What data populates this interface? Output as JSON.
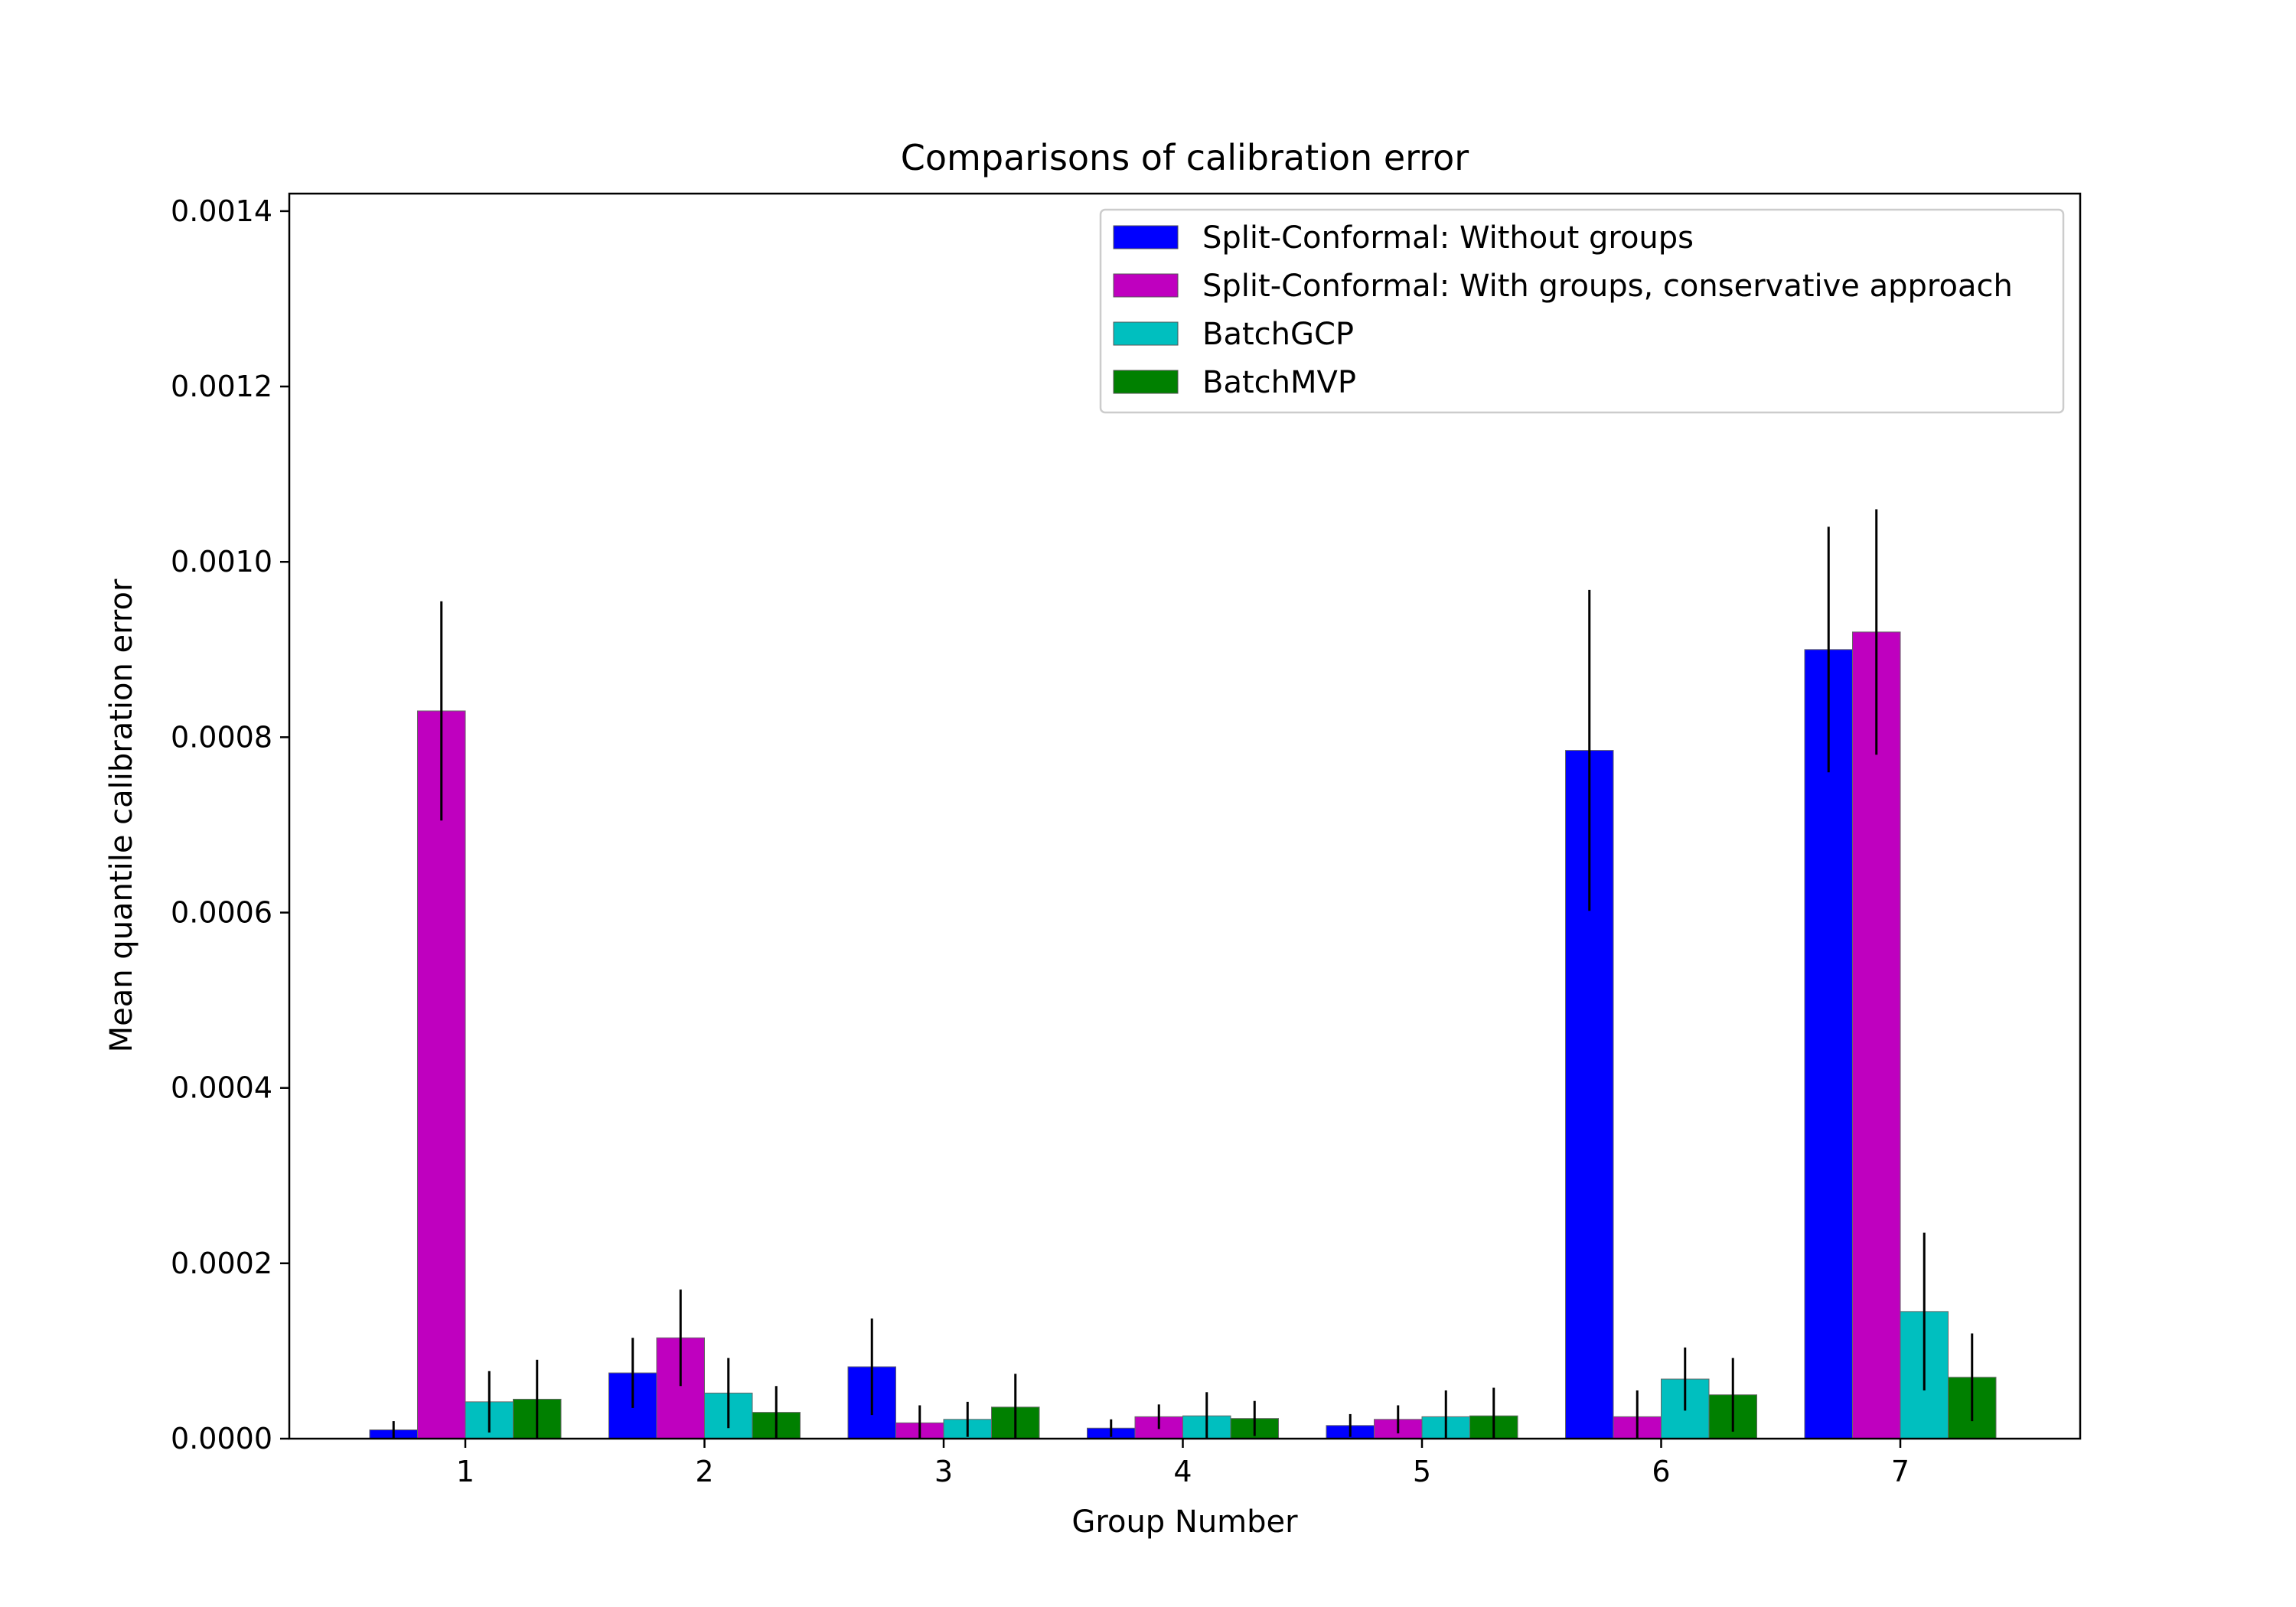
{
  "chart_data": {
    "type": "bar",
    "title": "Comparisons of calibration error",
    "xlabel": "Group Number",
    "ylabel": "Mean quantile calibration error",
    "categories": [
      "1",
      "2",
      "3",
      "4",
      "5",
      "6",
      "7"
    ],
    "ylim": [
      0,
      0.00142
    ],
    "yticks": [
      0,
      0.0002,
      0.0004,
      0.0006,
      0.0008,
      0.001,
      0.0012,
      0.0014
    ],
    "ytick_labels": [
      "0.0000",
      "0.0002",
      "0.0004",
      "0.0006",
      "0.0008",
      "0.0010",
      "0.0012",
      "0.0014"
    ],
    "legend_position": "top-right",
    "grid": false,
    "series": [
      {
        "name": "Split-Conformal: Without groups",
        "color": "#0000ff",
        "values": [
          1e-05,
          7.5e-05,
          8.2e-05,
          1.2e-05,
          1.5e-05,
          0.000785,
          0.0009
        ],
        "errors": [
          1e-05,
          4e-05,
          5.5e-05,
          1e-05,
          1.3e-05,
          0.000183,
          0.00014
        ]
      },
      {
        "name": "Split-Conformal: With groups, conservative approach",
        "color": "#bf00bf",
        "values": [
          0.00083,
          0.000115,
          1.8e-05,
          2.5e-05,
          2.2e-05,
          2.5e-05,
          0.00092
        ],
        "errors": [
          0.000125,
          5.5e-05,
          2e-05,
          1.4e-05,
          1.6e-05,
          3e-05,
          0.00014
        ]
      },
      {
        "name": "BatchGCP",
        "color": "#00bfbf",
        "values": [
          4.2e-05,
          5.2e-05,
          2.2e-05,
          2.6e-05,
          2.5e-05,
          6.8e-05,
          0.000145
        ],
        "errors": [
          3.5e-05,
          4e-05,
          2e-05,
          2.7e-05,
          3e-05,
          3.6e-05,
          9e-05
        ]
      },
      {
        "name": "BatchMVP",
        "color": "#008000",
        "values": [
          4.5e-05,
          3e-05,
          3.6e-05,
          2.3e-05,
          2.6e-05,
          5e-05,
          7e-05
        ],
        "errors": [
          4.5e-05,
          3e-05,
          3.8e-05,
          2e-05,
          3.2e-05,
          4.2e-05,
          5e-05
        ]
      }
    ]
  }
}
